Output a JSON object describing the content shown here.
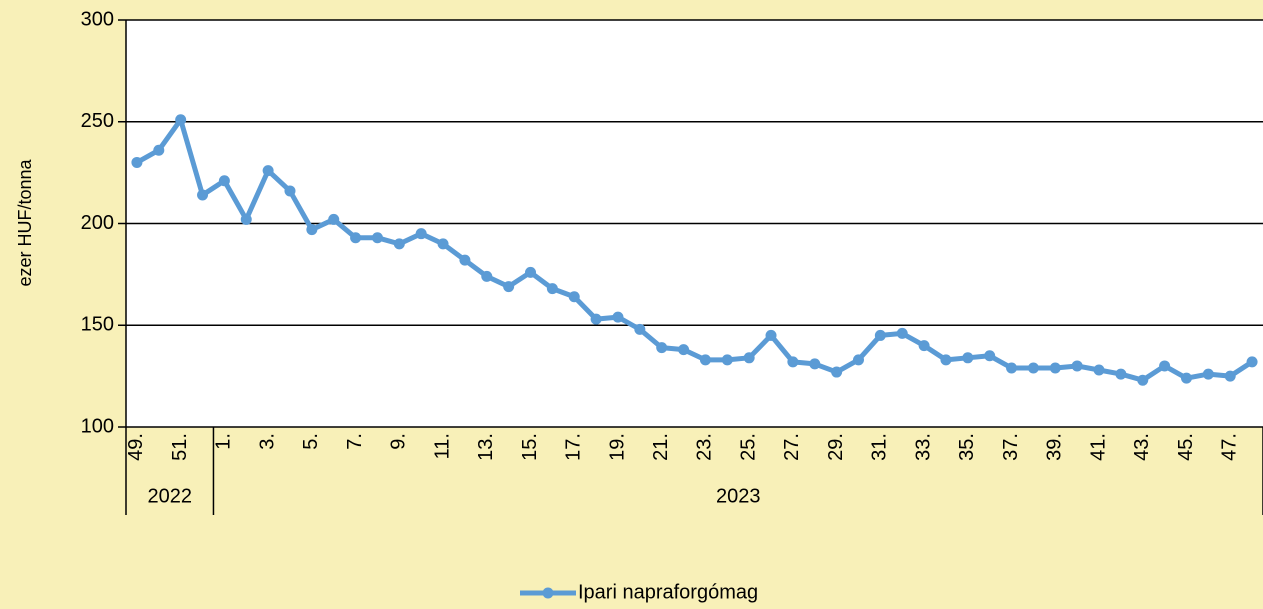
{
  "chart_data": {
    "type": "line",
    "y_label": "ezer HUF/tonna",
    "categories": [
      "49.",
      null,
      "51.",
      null,
      "1.",
      null,
      "3.",
      null,
      "5.",
      null,
      "7.",
      null,
      "9.",
      null,
      "11.",
      null,
      "13.",
      null,
      "15.",
      null,
      "17.",
      null,
      "19.",
      null,
      "21.",
      null,
      "23.",
      null,
      "25.",
      null,
      "27.",
      null,
      "29.",
      null,
      "31.",
      null,
      "33.",
      null,
      "35.",
      null,
      "37.",
      null,
      "39.",
      null,
      "41.",
      null,
      "43.",
      null,
      "45.",
      null,
      "47.",
      null
    ],
    "year_groups": [
      {
        "label": "2022",
        "start": 0,
        "end": 3
      },
      {
        "label": "2023",
        "start": 4,
        "end": 51
      }
    ],
    "series": [
      {
        "name": "Ipari napraforgómag",
        "color": "#5b9bd5",
        "values": [
          230,
          236,
          251,
          214,
          221,
          202,
          226,
          216,
          197,
          202,
          193,
          193,
          190,
          195,
          190,
          182,
          174,
          169,
          176,
          168,
          164,
          153,
          154,
          148,
          139,
          138,
          133,
          133,
          134,
          145,
          132,
          131,
          127,
          133,
          145,
          146,
          140,
          133,
          134,
          135,
          129,
          129,
          129,
          130,
          128,
          126,
          123,
          130,
          124,
          126,
          125,
          132
        ]
      }
    ],
    "ylim": [
      100,
      300
    ],
    "yticks": [
      100,
      150,
      200,
      250,
      300
    ],
    "grid": true,
    "legend": "bottom"
  }
}
